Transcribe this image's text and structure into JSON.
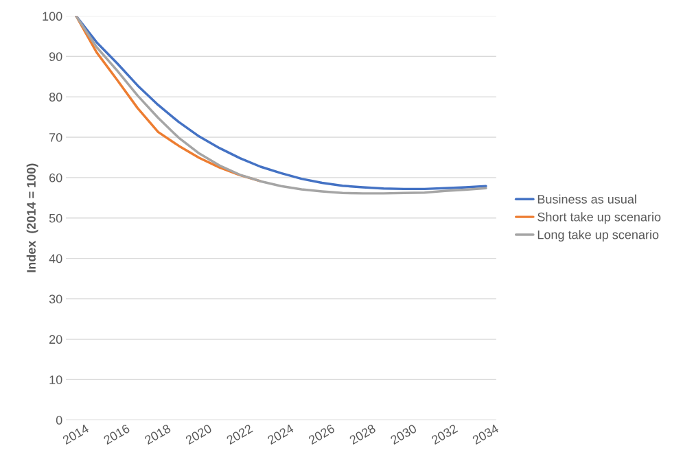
{
  "chart_data": {
    "type": "line",
    "ylabel": "Index  (2014 = 100)",
    "categories": [
      "2014",
      null,
      "2016",
      null,
      "2018",
      null,
      "2020",
      null,
      "2022",
      null,
      "2024",
      null,
      "2026",
      null,
      "2028",
      null,
      "2030",
      null,
      "2032",
      null,
      "2034"
    ],
    "series": [
      {
        "name": "Business as usual",
        "color": "#4472c4",
        "values": [
          100,
          93.5,
          88.3,
          82.8,
          78,
          73.8,
          70.2,
          67.3,
          64.8,
          62.7,
          61.1,
          59.7,
          58.7,
          58,
          57.6,
          57.3,
          57.2,
          57.2,
          57.4,
          57.6,
          57.9
        ]
      },
      {
        "name": "Short take up scenario",
        "color": "#ed7d31",
        "values": [
          100,
          91,
          84.2,
          77.2,
          71.3,
          67.9,
          64.9,
          62.5,
          60.6,
          59.1,
          null,
          null,
          null,
          null,
          null,
          null,
          null,
          null,
          null,
          null,
          null
        ]
      },
      {
        "name": "Long take up scenario",
        "color": "#a5a5a5",
        "values": [
          100,
          92.3,
          86.5,
          80.3,
          74.8,
          69.9,
          66,
          63,
          60.7,
          59.1,
          57.9,
          57.1,
          56.6,
          56.2,
          56.1,
          56.1,
          56.2,
          56.3,
          56.7,
          57,
          57.4
        ]
      }
    ],
    "ylim": [
      0,
      100
    ],
    "yticks": [
      0,
      10,
      20,
      30,
      40,
      50,
      60,
      70,
      80,
      90,
      100
    ],
    "grid": "y",
    "legend": "right",
    "marker": "none",
    "line_style": "solid"
  }
}
